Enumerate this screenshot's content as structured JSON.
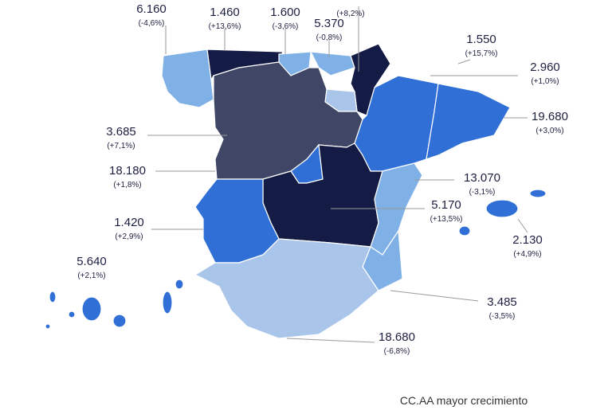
{
  "regions": [
    {
      "value": "6.160",
      "change": "(-4,6%)"
    },
    {
      "value": "1.460",
      "change": "(+13,6%)"
    },
    {
      "value": "1.600",
      "change": "(-3,6%)"
    },
    {
      "value": "5.370",
      "change": "(-0,8%)"
    },
    {
      "change": "(+8,2%)"
    },
    {
      "value": "1.550",
      "change": "(+15,7%)"
    },
    {
      "value": "2.960",
      "change": "(+1,0%)"
    },
    {
      "value": "19.680",
      "change": "(+3,0%)"
    },
    {
      "value": "3.685",
      "change": "(+7,1%)"
    },
    {
      "value": "13.070",
      "change": "(-3,1%)"
    },
    {
      "value": "18.180",
      "change": "(+1,8%)"
    },
    {
      "value": "5.170",
      "change": "(+13,5%)"
    },
    {
      "value": "1.420",
      "change": "(+2,9%)"
    },
    {
      "value": "2.130",
      "change": "(+4,9%)"
    },
    {
      "value": "5.640",
      "change": "(+2,1%)"
    },
    {
      "value": "3.485",
      "change": "(-3,5%)"
    },
    {
      "value": "18.680",
      "change": "(-6,8%)"
    }
  ],
  "legend": "CC.AA mayor crecimiento"
}
